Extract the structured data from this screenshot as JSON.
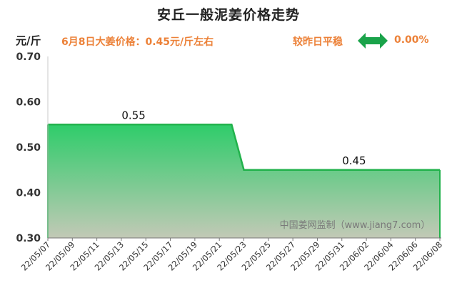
{
  "title": "安丘一般泥姜价格走势",
  "unit": "元/斤",
  "price_note": "6月8日大姜价格：0.45元/斤左右",
  "compare_label": "较昨日平稳",
  "compare_value": "0.00%",
  "watermark": "中国姜网监制（www.jiang7.com）",
  "colors": {
    "title": "#222222",
    "note": "#ec8138",
    "line": "#22b24c",
    "fill_top": "#2ecc6a",
    "fill_bottom": "#c2c9b6",
    "arrow": "#1aa34a"
  },
  "icons": {
    "compare": "double-arrow-icon"
  },
  "chart_data": {
    "type": "area",
    "x_tick_labels": [
      "22/05/07",
      "22/05/09",
      "22/05/11",
      "22/05/13",
      "22/05/15",
      "22/05/17",
      "22/05/19",
      "22/05/21",
      "22/05/23",
      "22/05/25",
      "22/05/27",
      "22/05/29",
      "22/05/31",
      "22/06/02",
      "22/06/04",
      "22/06/06",
      "22/06/08"
    ],
    "x": [
      "22/05/07",
      "22/05/22",
      "22/05/23",
      "22/06/08"
    ],
    "values": [
      0.55,
      0.55,
      0.45,
      0.45
    ],
    "data_labels": [
      {
        "x": "22/05/14",
        "text": "0.55"
      },
      {
        "x": "22/06/01",
        "text": "0.45"
      }
    ],
    "ylabel": "元/斤",
    "ylim": [
      0.3,
      0.7
    ],
    "y_ticks": [
      "0.70",
      "0.60",
      "0.50",
      "0.40",
      "0.30"
    ],
    "grid": false
  }
}
